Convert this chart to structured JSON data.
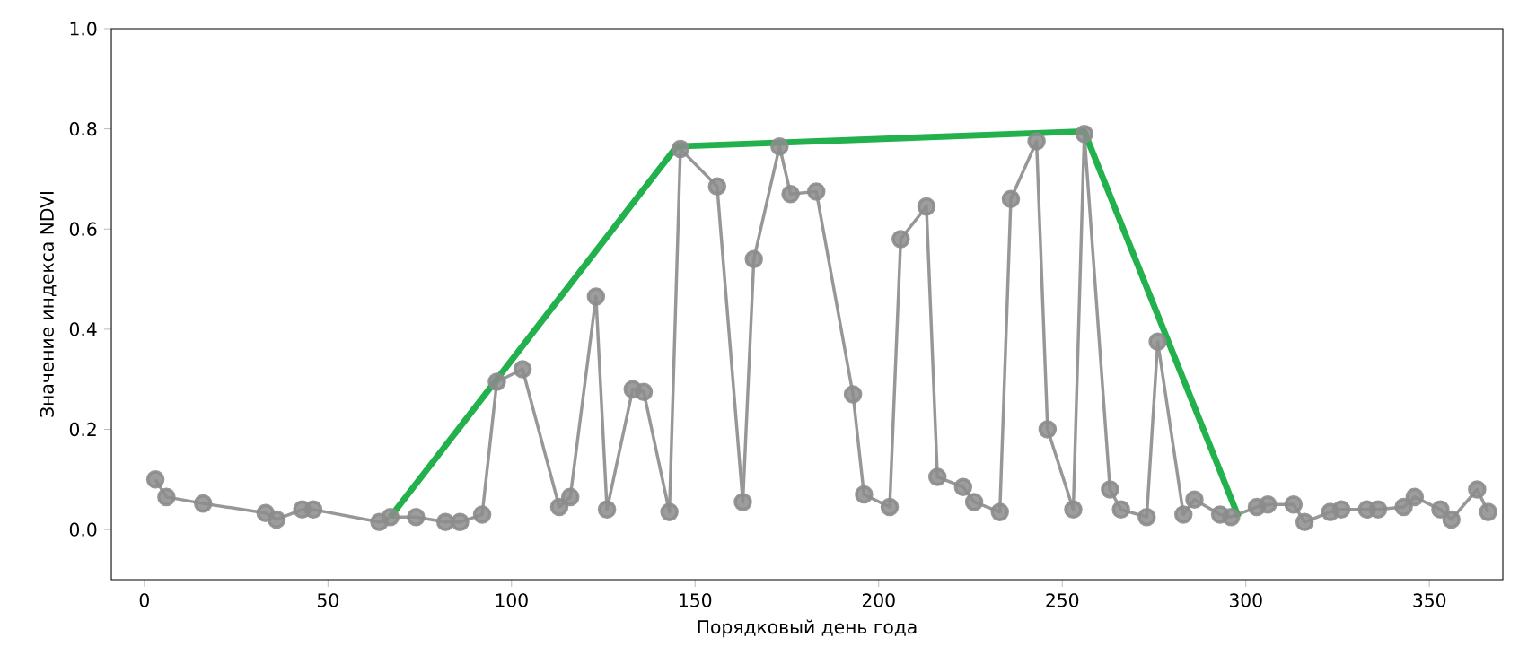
{
  "chart_data": {
    "type": "line",
    "xlabel": "Порядковый день года",
    "ylabel": "Значение индекса NDVI",
    "xlim": [
      -9,
      370
    ],
    "ylim": [
      -0.1,
      1.0
    ],
    "xticks": [
      0,
      50,
      100,
      150,
      200,
      250,
      300,
      350
    ],
    "yticks": [
      {
        "value": 0.0,
        "label": "0.0"
      },
      {
        "value": 0.2,
        "label": "0.2"
      },
      {
        "value": 0.4,
        "label": "0.4"
      },
      {
        "value": 0.6,
        "label": "0.6"
      },
      {
        "value": 0.8,
        "label": "0.8"
      },
      {
        "value": 1.0,
        "label": "1.0"
      }
    ],
    "grid": false,
    "series": [
      {
        "color": "#8c8c8c",
        "marker": "circle",
        "x": [
          3,
          6,
          16,
          33,
          36,
          43,
          46,
          64,
          67,
          74,
          82,
          86,
          92,
          96,
          103,
          113,
          116,
          123,
          126,
          133,
          136,
          143,
          146,
          156,
          163,
          166,
          173,
          176,
          183,
          193,
          196,
          203,
          206,
          213,
          216,
          223,
          226,
          233,
          236,
          243,
          246,
          253,
          256,
          263,
          266,
          273,
          276,
          283,
          286,
          293,
          296,
          303,
          306,
          313,
          316,
          323,
          326,
          333,
          336,
          343,
          346,
          353,
          356,
          363,
          366
        ],
        "values": [
          0.1,
          0.065,
          0.052,
          0.033,
          0.02,
          0.04,
          0.04,
          0.015,
          0.025,
          0.025,
          0.015,
          0.015,
          0.03,
          0.295,
          0.32,
          0.045,
          0.065,
          0.465,
          0.04,
          0.28,
          0.275,
          0.035,
          0.76,
          0.685,
          0.055,
          0.54,
          0.765,
          0.67,
          0.675,
          0.27,
          0.07,
          0.045,
          0.58,
          0.645,
          0.105,
          0.085,
          0.055,
          0.035,
          0.66,
          0.775,
          0.2,
          0.04,
          0.79,
          0.08,
          0.04,
          0.025,
          0.375,
          0.03,
          0.06,
          0.03,
          0.025,
          0.045,
          0.05,
          0.05,
          0.015,
          0.035,
          0.04,
          0.04,
          0.04,
          0.045,
          0.065,
          0.04,
          0.02,
          0.08,
          0.035
        ]
      },
      {
        "color": "#22b14c",
        "marker": "none",
        "x": [
          67,
          145,
          256,
          298
        ],
        "values": [
          0.025,
          0.765,
          0.795,
          0.025
        ]
      }
    ]
  }
}
